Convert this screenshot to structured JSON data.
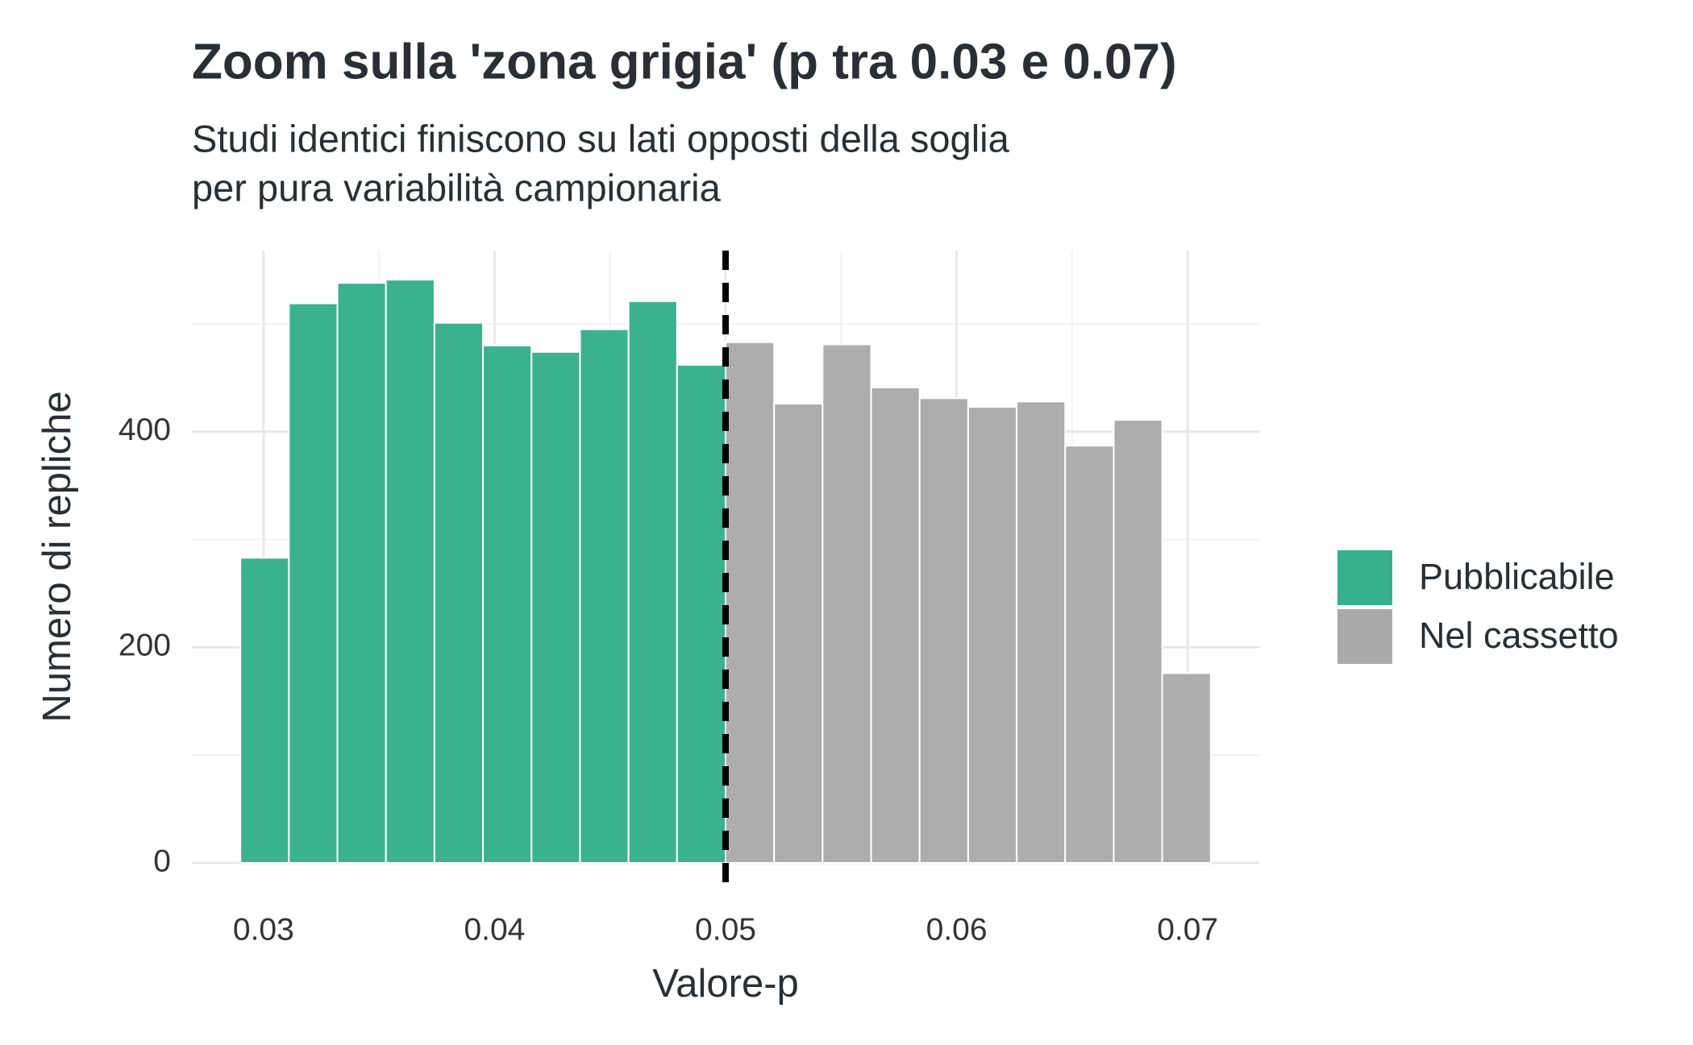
{
  "chart_data": {
    "type": "histogram",
    "title": "Zoom sulla 'zona grigia' (p tra 0.03 e 0.07)",
    "subtitle": [
      "Studi identici finiscono su lati opposti della soglia",
      "per pura variabilità campionaria"
    ],
    "x_label": "Valore-p",
    "y_label": "Numero di repliche",
    "bins": [
      0.029,
      0.0311,
      0.0332,
      0.0353,
      0.0374,
      0.0395,
      0.0416,
      0.0437,
      0.0458,
      0.0479,
      0.05,
      0.0521,
      0.0542,
      0.0563,
      0.0584,
      0.0605,
      0.0626,
      0.0647,
      0.0668,
      0.0689,
      0.071
    ],
    "series": [
      {
        "name": "Pubblicabile",
        "color": "#35b08a",
        "values": [
          283,
          519,
          538,
          541,
          501,
          480,
          474,
          495,
          521,
          462,
          null,
          null,
          null,
          null,
          null,
          null,
          null,
          null,
          null,
          null
        ]
      },
      {
        "name": "Nel cassetto",
        "color": "#aaaaaa",
        "values": [
          null,
          null,
          null,
          null,
          null,
          null,
          null,
          null,
          null,
          null,
          483,
          426,
          481,
          441,
          431,
          423,
          428,
          387,
          411,
          176
        ]
      }
    ],
    "xlim": [
      0.0269,
      0.0731
    ],
    "ylim": [
      0,
      568
    ],
    "xticks": [
      0.03,
      0.04,
      0.05,
      0.06,
      0.07
    ],
    "yticks": [
      0,
      200,
      400
    ],
    "minor_xticks": [
      0.035,
      0.045,
      0.055,
      0.065
    ],
    "minor_yticks": [
      100,
      300,
      500
    ],
    "vline": 0.05,
    "grid": true,
    "legend": "right"
  }
}
